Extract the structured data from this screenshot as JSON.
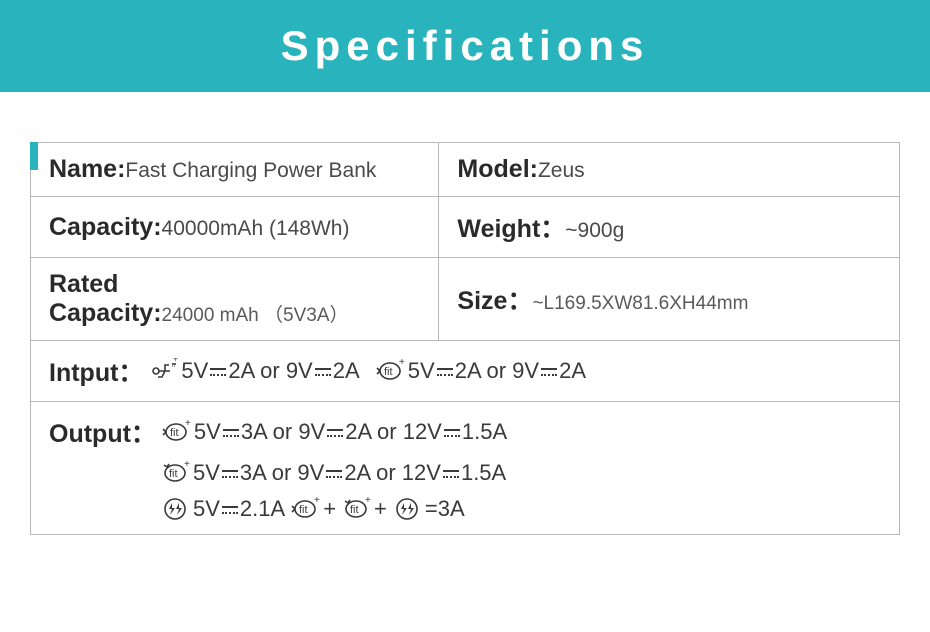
{
  "header": {
    "title": "Specifications"
  },
  "colors": {
    "accent": "#29b4bd",
    "border": "#b8b8b8",
    "text_dark": "#2a2a2a",
    "text_body": "#4a4a4a",
    "text_muted": "#5a5a5a",
    "background": "#ffffff"
  },
  "rows": {
    "name": {
      "label": "Name:",
      "value": "Fast Charging Power Bank"
    },
    "model": {
      "label": "Model:",
      "value": "Zeus"
    },
    "capacity": {
      "label": "Capacity:",
      "value": "40000mAh (148Wh)"
    },
    "weight": {
      "label": "Weight：",
      "value": "~900g"
    },
    "rated": {
      "label": "Rated Capacity:",
      "value": "24000 mAh （5V3A）"
    },
    "size": {
      "label": "Size：",
      "value": "~L169.5XW81.6XH44mm"
    }
  },
  "input": {
    "label": "Intput：",
    "segments": [
      {
        "icon": "micro-usb-icon",
        "text": "5V⎓2A or 9V⎓2A"
      },
      {
        "icon": "fit-plus-icon",
        "text": "5V⎓2A or 9V⎓2A"
      }
    ]
  },
  "output": {
    "label": "Output：",
    "lines": [
      {
        "indent": false,
        "segments": [
          {
            "icon": "fit-plus-icon",
            "text": "5V⎓3A or 9V⎓2A or 12V⎓1.5A"
          }
        ]
      },
      {
        "indent": true,
        "segments": [
          {
            "icon": "fit-plus-alt-icon",
            "text": "5V⎓3A or 9V⎓2A or 12V⎓1.5A"
          }
        ]
      },
      {
        "indent": true,
        "segments": [
          {
            "icon": "double-bolt-icon",
            "text": "5V⎓2.1A"
          },
          {
            "icon": "fit-plus-icon",
            "text": "+"
          },
          {
            "icon": "fit-plus-alt-icon",
            "text": "+"
          },
          {
            "icon": "double-bolt-icon",
            "text": "=3A"
          }
        ]
      }
    ]
  }
}
